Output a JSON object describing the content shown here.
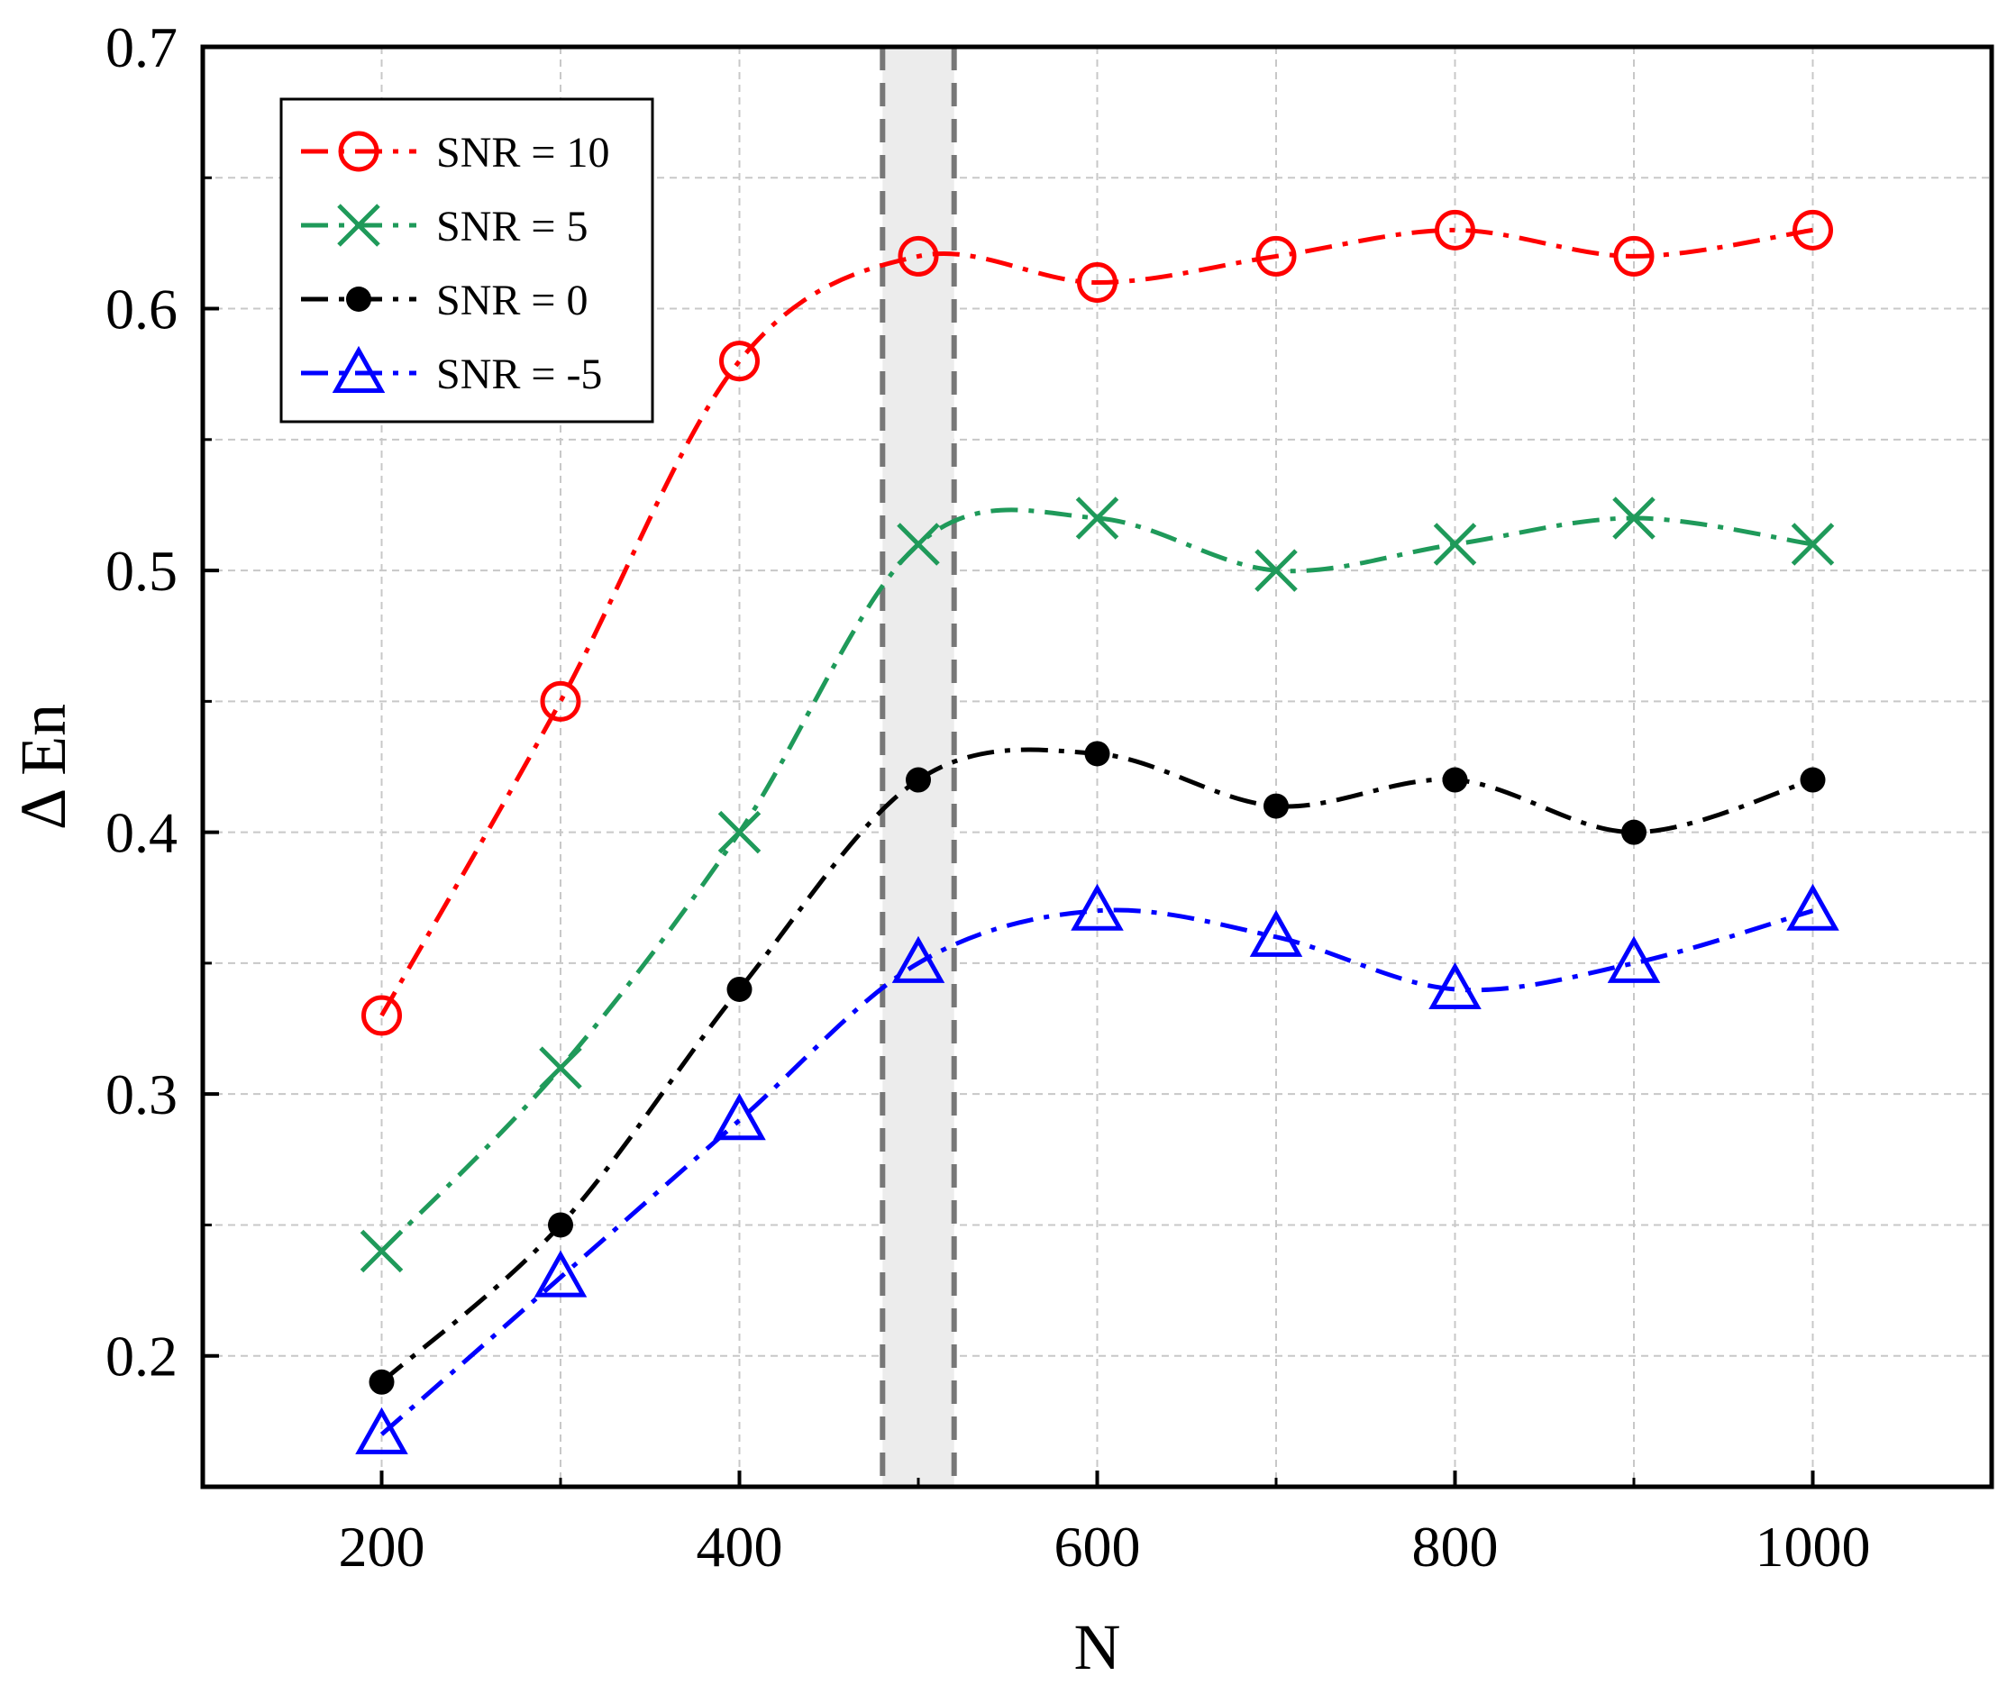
{
  "chart_data": {
    "type": "line",
    "title": "",
    "xlabel": "N",
    "ylabel": "Δ En",
    "xlim": [
      100,
      1100
    ],
    "ylim": [
      0.15,
      0.7
    ],
    "x_ticks": [
      200,
      400,
      600,
      800,
      1000
    ],
    "x_tick_labels": [
      "200",
      "400",
      "600",
      "800",
      "1000"
    ],
    "y_ticks": [
      0.2,
      0.3,
      0.4,
      0.5,
      0.6,
      0.7
    ],
    "y_tick_labels": [
      "0.2",
      "0.3",
      "0.4",
      "0.5",
      "0.6",
      "0.7"
    ],
    "grid": true,
    "legend_position": "top-left",
    "highlight_band": {
      "x_from": 480,
      "x_to": 520,
      "color": "#ececec",
      "edge_color": "#777777"
    },
    "x": [
      200,
      300,
      400,
      500,
      600,
      700,
      800,
      900,
      1000
    ],
    "series": [
      {
        "name": "SNR = 10",
        "color": "#ff0000",
        "marker": "circle",
        "values": [
          0.33,
          0.45,
          0.58,
          0.62,
          0.61,
          0.62,
          0.63,
          0.62,
          0.63
        ]
      },
      {
        "name": "SNR = 5",
        "color": "#1f9a5a",
        "marker": "x",
        "values": [
          0.24,
          0.31,
          0.4,
          0.51,
          0.52,
          0.5,
          0.51,
          0.52,
          0.51
        ]
      },
      {
        "name": "SNR = 0",
        "color": "#000000",
        "marker": "dot",
        "values": [
          0.19,
          0.25,
          0.34,
          0.42,
          0.43,
          0.41,
          0.42,
          0.4,
          0.42
        ]
      },
      {
        "name": "SNR = -5",
        "color": "#0000ff",
        "marker": "triangle",
        "values": [
          0.17,
          0.23,
          0.29,
          0.35,
          0.37,
          0.36,
          0.34,
          0.35,
          0.37
        ]
      }
    ]
  }
}
